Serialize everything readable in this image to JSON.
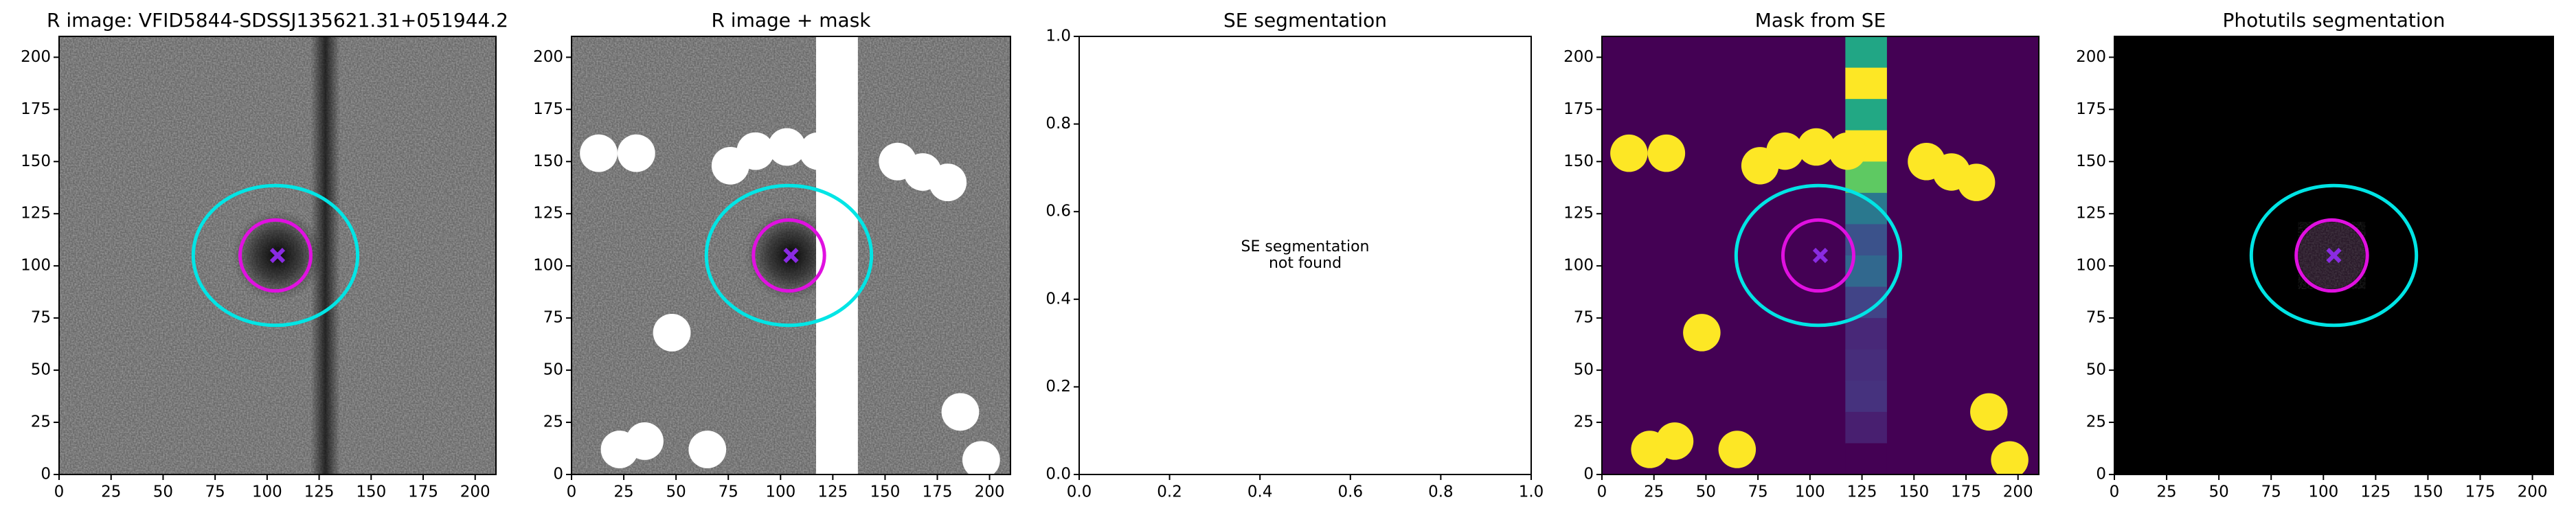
{
  "chart_data": [
    {
      "type": "image",
      "title": "R image: VFID5844-SDSSJ135621.31+051944.2",
      "xlim": [
        0,
        210
      ],
      "ylim": [
        0,
        210
      ],
      "xticks": [
        0,
        25,
        50,
        75,
        100,
        125,
        150,
        175,
        200
      ],
      "yticks": [
        0,
        25,
        50,
        75,
        100,
        125,
        150,
        175,
        200
      ],
      "ellipses": [
        {
          "x": 104,
          "y": 105,
          "width": 79,
          "height": 67,
          "color": "#00e5e5"
        },
        {
          "x": 104,
          "y": 105,
          "width": 34,
          "height": 34,
          "color": "#e010e0"
        }
      ],
      "center": {
        "x": 105,
        "y": 105,
        "color": "#8a2be2"
      }
    },
    {
      "type": "image",
      "title": "R image + mask",
      "xlim": [
        0,
        210
      ],
      "ylim": [
        0,
        210
      ],
      "xticks": [
        0,
        25,
        50,
        75,
        100,
        125,
        150,
        175,
        200
      ],
      "yticks": [
        0,
        25,
        50,
        75,
        100,
        125,
        150,
        175,
        200
      ],
      "ellipses": [
        {
          "x": 104,
          "y": 105,
          "width": 79,
          "height": 67,
          "color": "#00e5e5"
        },
        {
          "x": 104,
          "y": 105,
          "width": 34,
          "height": 34,
          "color": "#e010e0"
        }
      ],
      "center": {
        "x": 105,
        "y": 105,
        "color": "#8a2be2"
      }
    },
    {
      "type": "empty",
      "title": "SE segmentation",
      "xlim": [
        0,
        1
      ],
      "ylim": [
        0,
        1
      ],
      "xticks": [
        {
          "value": 0,
          "label": "0.0"
        },
        {
          "value": 0.2,
          "label": "0.2"
        },
        {
          "value": 0.4,
          "label": "0.4"
        },
        {
          "value": 0.6,
          "label": "0.6"
        },
        {
          "value": 0.8,
          "label": "0.8"
        },
        {
          "value": 1,
          "label": "1.0"
        }
      ],
      "yticks": [
        {
          "value": 0,
          "label": "0.0"
        },
        {
          "value": 0.2,
          "label": "0.2"
        },
        {
          "value": 0.4,
          "label": "0.4"
        },
        {
          "value": 0.6,
          "label": "0.6"
        },
        {
          "value": 0.8,
          "label": "0.8"
        },
        {
          "value": 1,
          "label": "1.0"
        }
      ],
      "annotation": [
        "SE segmentation",
        "not found"
      ]
    },
    {
      "type": "image",
      "title": "Mask from SE",
      "xlim": [
        0,
        210
      ],
      "ylim": [
        0,
        210
      ],
      "xticks": [
        0,
        25,
        50,
        75,
        100,
        125,
        150,
        175,
        200
      ],
      "yticks": [
        0,
        25,
        50,
        75,
        100,
        125,
        150,
        175,
        200
      ],
      "ellipses": [
        {
          "x": 104,
          "y": 105,
          "width": 79,
          "height": 67,
          "color": "#00e5e5"
        },
        {
          "x": 104,
          "y": 105,
          "width": 34,
          "height": 34,
          "color": "#e010e0"
        }
      ],
      "center": {
        "x": 105,
        "y": 105,
        "color": "#8a2be2"
      }
    },
    {
      "type": "image",
      "title": "Photutils segmentation",
      "xlim": [
        0,
        210
      ],
      "ylim": [
        0,
        210
      ],
      "xticks": [
        0,
        25,
        50,
        75,
        100,
        125,
        150,
        175,
        200
      ],
      "yticks": [
        0,
        25,
        50,
        75,
        100,
        125,
        150,
        175,
        200
      ],
      "ellipses": [
        {
          "x": 105,
          "y": 105,
          "width": 79,
          "height": 67,
          "color": "#00e5e5"
        },
        {
          "x": 104,
          "y": 105,
          "width": 34,
          "height": 34,
          "color": "#e010e0"
        }
      ],
      "center": {
        "x": 105,
        "y": 105,
        "color": "#8a2be2"
      }
    }
  ]
}
